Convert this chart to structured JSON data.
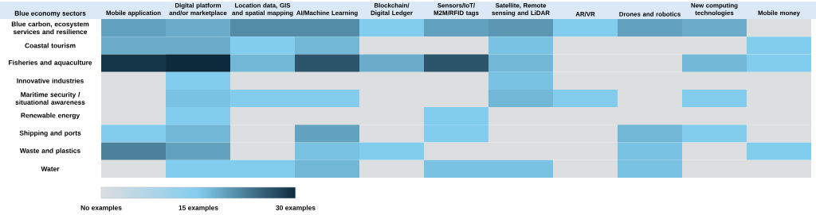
{
  "chart_data": {
    "type": "heatmap",
    "ylabel": "Blue economy sectors",
    "categories": [
      "Mobile application",
      "Digital platform and/or marketplace",
      "Location data, GIS and spatial mapping",
      "AI/Machine Learning",
      "Blockchain/ Digital Ledger",
      "Sensors/IoT/ M2M/RFID tags",
      "Satellite, Remote sensing and LiDAR",
      "AR/VR",
      "Drones and robotics",
      "New computing technologies",
      "Mobile money"
    ],
    "y_categories": [
      "Blue carbon, ecosystem services and resilience",
      "Coastal tourism",
      "Fisheries and aquaculture",
      "Innovative industries",
      "Maritime security / situational awareness",
      "Renewable energy",
      "Shipping and ports",
      "Waste and plastics",
      "Water"
    ],
    "cells": [
      [
        19,
        18,
        21,
        21,
        15,
        19,
        20,
        15,
        19,
        18,
        0
      ],
      [
        18,
        18,
        15,
        17,
        0,
        0,
        16,
        0,
        0,
        0,
        15
      ],
      [
        29,
        30,
        17,
        26,
        18,
        26,
        17,
        0,
        0,
        17,
        15
      ],
      [
        0,
        15,
        0,
        0,
        0,
        0,
        16,
        0,
        0,
        0,
        0
      ],
      [
        0,
        16,
        15,
        15,
        0,
        0,
        17,
        15,
        0,
        15,
        0
      ],
      [
        0,
        15,
        0,
        0,
        0,
        15,
        0,
        0,
        0,
        0,
        0
      ],
      [
        15,
        17,
        0,
        19,
        0,
        15,
        0,
        0,
        17,
        15,
        0
      ],
      [
        22,
        19,
        0,
        16,
        15,
        0,
        0,
        0,
        16,
        0,
        15
      ],
      [
        0,
        15,
        15,
        17,
        0,
        16,
        16,
        0,
        16,
        0,
        0
      ]
    ],
    "clim": [
      0,
      30
    ],
    "cticks": [
      {
        "value": 0,
        "label": "No examples"
      },
      {
        "value": 15,
        "label": "15 examples"
      },
      {
        "value": 30,
        "label": "30 examples"
      }
    ]
  }
}
